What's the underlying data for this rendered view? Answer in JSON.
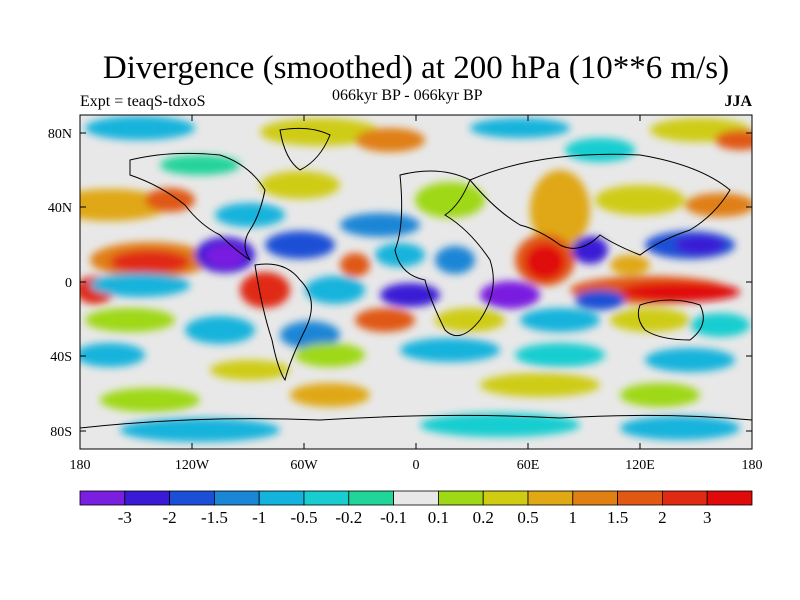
{
  "title": "Divergence (smoothed) at 200 hPa (10**6 m/s)",
  "subtitle_left": "Expt = teaqS-tdxoS",
  "subtitle_center": "066kyr BP - 066kyr BP",
  "subtitle_right": "JJA",
  "y_ticks": [
    "80N",
    "40N",
    "0",
    "40S",
    "80S"
  ],
  "x_ticks": [
    "180",
    "120W",
    "60W",
    "0",
    "60E",
    "120E",
    "180"
  ],
  "colorbar": {
    "labels": [
      "-3",
      "-2",
      "-1.5",
      "-1",
      "-0.5",
      "-0.2",
      "-0.1",
      "0.1",
      "0.2",
      "0.5",
      "1",
      "1.5",
      "2",
      "3"
    ],
    "colors": [
      "#7a1ee0",
      "#3a1ad6",
      "#1a4fd6",
      "#1a86d6",
      "#12b3dc",
      "#17cdd0",
      "#20d49a",
      "#e8e8e8",
      "#9fd814",
      "#cfcc12",
      "#e0a812",
      "#e07f12",
      "#e05812",
      "#e02a12",
      "#e00a0a"
    ]
  }
}
